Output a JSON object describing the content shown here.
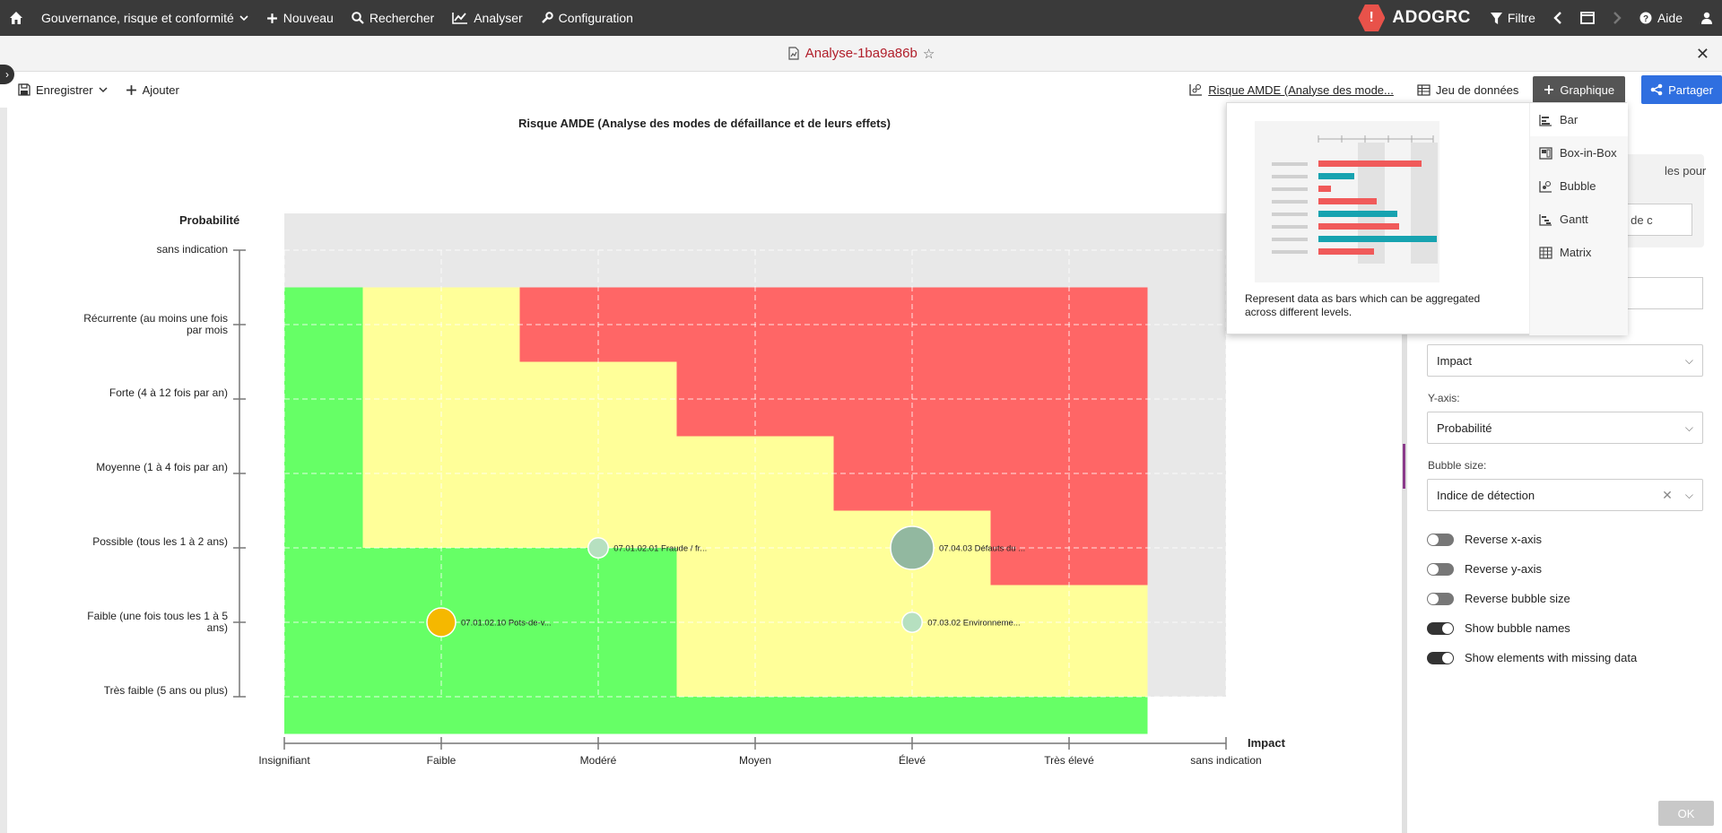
{
  "nav": {
    "home_icon": "home-icon",
    "items": [
      {
        "label": "Gouvernance, risque et conformité",
        "icon": "",
        "has_dropdown": true
      },
      {
        "label": "Nouveau",
        "icon": "plus-icon"
      },
      {
        "label": "Rechercher",
        "icon": "search-icon"
      },
      {
        "label": "Analyser",
        "icon": "chart-line-icon"
      },
      {
        "label": "Configuration",
        "icon": "wrench-icon"
      }
    ],
    "brand": "ADOGRC",
    "filter_label": "Filtre",
    "help_label": "Aide"
  },
  "titlebar": {
    "title": "Analyse-1ba9a86b"
  },
  "toolbar": {
    "save_label": "Enregistrer",
    "add_label": "Ajouter",
    "analysis_link": "Risque AMDE (Analyse des mode...",
    "dataset_label": "Jeu de données",
    "graph_label": "Graphique",
    "share_label": "Partager"
  },
  "chart_data": {
    "type": "bubble",
    "title": "Risque AMDE (Analyse des modes de défaillance et de leurs effets)",
    "xlabel": "Impact",
    "ylabel": "Probabilité",
    "x_categories": [
      "Insignifiant",
      "Faible",
      "Modéré",
      "Moyen",
      "Élevé",
      "Très élevé",
      "sans indication"
    ],
    "y_categories": [
      "Très faible (5 ans ou plus)",
      "Faible (une fois tous les 1 à 5 ans)",
      "Possible (tous les 1 à 2 ans)",
      "Moyenne (1 à 4 fois par an)",
      "Forte (4 à 12 fois par an)",
      "Récurrente (au moins une fois par mois",
      "sans indication"
    ],
    "bubbles": [
      {
        "label": "07.01.02.10 Pots-de-v...",
        "x": "Faible",
        "y": "Faible (une fois tous les 1 à 5 ans)",
        "color": "#f5b800",
        "size": 2
      },
      {
        "label": "07.01.02.01 Fraude / fr...",
        "x": "Modéré",
        "y": "Possible (tous les 1 à 2 ans)",
        "color": "#b6e0c0",
        "size": 1.4
      },
      {
        "label": "07.04.03 Défauts du ...",
        "x": "Élevé",
        "y": "Possible (tous les 1 à 2 ans)",
        "color": "#92b8a0",
        "size": 3
      },
      {
        "label": "07.03.02 Environneme...",
        "x": "Élevé",
        "y": "Faible (une fois tous les 1 à 5 ans)",
        "color": "#b6e0c0",
        "size": 1.4
      }
    ],
    "zone_colors": {
      "green": "#66ff66",
      "yellow": "#ffff99",
      "red": "#ff6666",
      "none": "#e8e8e8"
    }
  },
  "popup": {
    "menu": [
      "Bar",
      "Box-in-Box",
      "Bubble",
      "Gantt",
      "Matrix"
    ],
    "description": "Represent data as bars which can be aggregated across different levels."
  },
  "panel": {
    "ghost_text": "les pour",
    "ghost_select": "s de c",
    "x_value": "Impact",
    "y_label": "Y-axis:",
    "y_value": "Probabilité",
    "bubble_label": "Bubble size:",
    "bubble_value": "Indice de détection",
    "toggles": [
      {
        "label": "Reverse x-axis",
        "on": false
      },
      {
        "label": "Reverse y-axis",
        "on": false
      },
      {
        "label": "Reverse bubble size",
        "on": false
      },
      {
        "label": "Show bubble names",
        "on": true
      },
      {
        "label": "Show elements with missing data",
        "on": true
      }
    ],
    "ok_label": "OK"
  }
}
